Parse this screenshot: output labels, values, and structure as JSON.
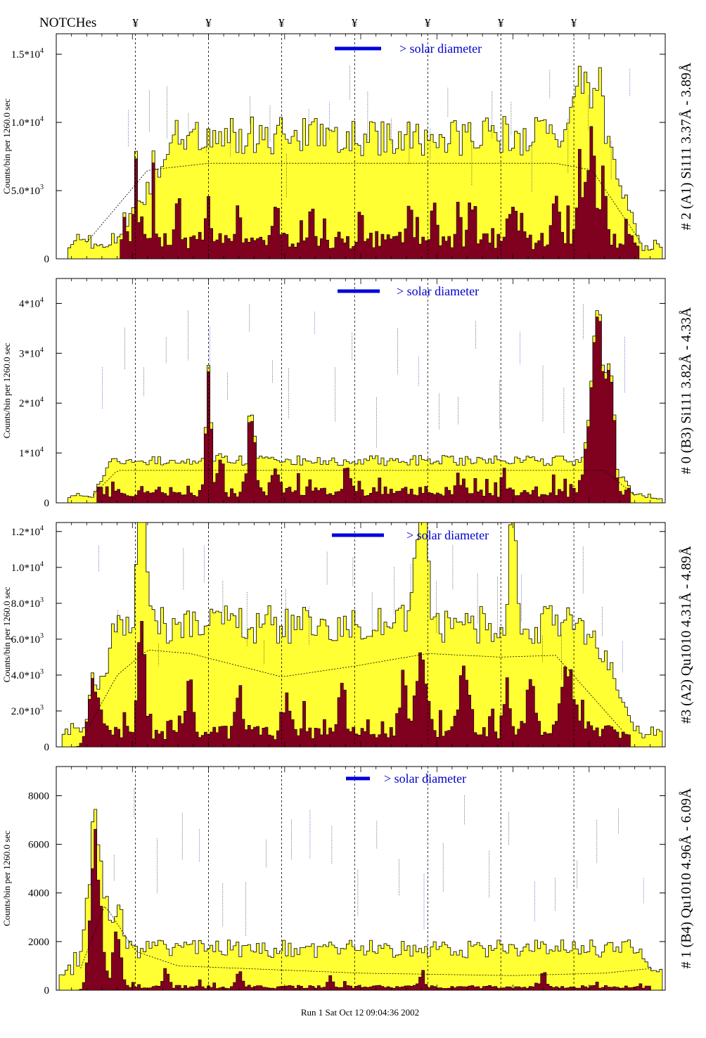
{
  "header": {
    "notches_label": "NOTCHes",
    "notch_symbol": "¥"
  },
  "footer": {
    "run_label": "Run 1 Sat Oct 12 09:04:36 2002"
  },
  "colors": {
    "total_fill": "#ffff33",
    "peak_fill": "#800020",
    "outline": "#000000",
    "scale_bar": "#0000dd",
    "scale_text": "#0000cc"
  },
  "chart_data": [
    {
      "type": "area",
      "id": "A1",
      "ylabel": "Counts/bin per   1260.0 sec",
      "side_label": "# 2 (A1) Si111  3.37Å - 3.89Å",
      "scale_label": "> solar diameter",
      "ylim": [
        0,
        16500
      ],
      "yticks": [
        0,
        5000,
        10000,
        15000
      ],
      "tick_labels": [
        "0",
        "5.0*10",
        "1.0*10",
        "1.5*10"
      ],
      "tick_exponents": [
        "",
        "3",
        "4",
        "4"
      ],
      "notches": [
        0.13,
        0.25,
        0.37,
        0.49,
        0.61,
        0.73,
        0.85
      ],
      "bins": 210,
      "outer": [
        0.02,
        0.1
      ],
      "rise": [
        0.1,
        0.2
      ],
      "fall": [
        0.9,
        0.96
      ],
      "plateau": 9000,
      "edge_level": 1200,
      "noise": 0.16,
      "peak_base": 1500,
      "peaks": [
        [
          0.13,
          4000,
          0.004
        ],
        [
          0.16,
          3500,
          0.003
        ],
        [
          0.2,
          3000,
          0.004
        ],
        [
          0.25,
          4200,
          0.003
        ],
        [
          0.3,
          2500,
          0.004
        ],
        [
          0.36,
          2800,
          0.004
        ],
        [
          0.42,
          2400,
          0.004
        ],
        [
          0.5,
          2000,
          0.004
        ],
        [
          0.58,
          2500,
          0.004
        ],
        [
          0.62,
          2800,
          0.004
        ],
        [
          0.68,
          2200,
          0.004
        ],
        [
          0.75,
          2000,
          0.006
        ],
        [
          0.82,
          3500,
          0.005
        ],
        [
          0.86,
          6000,
          0.004
        ],
        [
          0.88,
          7500,
          0.006
        ],
        [
          0.9,
          3000,
          0.005
        ]
      ],
      "dashed": [
        [
          0.05,
          1200
        ],
        [
          0.15,
          6500
        ],
        [
          0.25,
          7000
        ],
        [
          0.5,
          7000
        ],
        [
          0.75,
          7000
        ],
        [
          0.82,
          7000
        ],
        [
          0.88,
          6500
        ],
        [
          0.96,
          1200
        ]
      ],
      "side_bumps": [
        [
          0.86,
          5500,
          0.01
        ],
        [
          0.89,
          4000,
          0.008
        ]
      ]
    },
    {
      "type": "area",
      "id": "B3",
      "ylabel": "Counts/bin per   1260.0 sec",
      "side_label": "# 0 (B3) Si111  3.82Å - 4.33Å",
      "scale_label": "> solar diameter",
      "ylim": [
        0,
        45000
      ],
      "yticks": [
        0,
        10000,
        20000,
        30000,
        40000
      ],
      "tick_labels": [
        "0",
        "1*10",
        "2*10",
        "3*10",
        "4*10"
      ],
      "tick_exponents": [
        "",
        "4",
        "4",
        "4",
        "4"
      ],
      "notches": [
        0.13,
        0.25,
        0.37,
        0.49,
        0.61,
        0.73,
        0.85
      ],
      "bins": 210,
      "outer": [
        0.02,
        0.06
      ],
      "rise": [
        0.06,
        0.09
      ],
      "fall": [
        0.91,
        0.95
      ],
      "plateau": 8500,
      "edge_level": 1500,
      "noise": 0.12,
      "peak_base": 2500,
      "peaks": [
        [
          0.25,
          28000,
          0.004
        ],
        [
          0.27,
          7000,
          0.004
        ],
        [
          0.32,
          18000,
          0.005
        ],
        [
          0.36,
          5000,
          0.005
        ],
        [
          0.48,
          5000,
          0.005
        ],
        [
          0.66,
          5000,
          0.003
        ],
        [
          0.89,
          33000,
          0.012
        ],
        [
          0.91,
          18000,
          0.006
        ]
      ],
      "dashed": [
        [
          0.06,
          1500
        ],
        [
          0.1,
          6500
        ],
        [
          0.5,
          6500
        ],
        [
          0.9,
          6500
        ],
        [
          0.95,
          1500
        ]
      ],
      "side_bumps": []
    },
    {
      "type": "area",
      "id": "A2",
      "ylabel": "Counts/bin per   1260.0 sec",
      "side_label": "#3 (A2) Qu1010  4.31Å - 4.89Å",
      "scale_label": "> solar diameter",
      "ylim": [
        0,
        12500
      ],
      "yticks": [
        0,
        2000,
        4000,
        6000,
        8000,
        10000,
        12000
      ],
      "tick_labels": [
        "0",
        "2.0*10",
        "4.0*10",
        "6.0*10",
        "8.0*10",
        "1.0*10",
        "1.2*10"
      ],
      "tick_exponents": [
        "",
        "3",
        "3",
        "3",
        "3",
        "4",
        "4"
      ],
      "notches": [
        0.13,
        0.25,
        0.37,
        0.49,
        0.61,
        0.73,
        0.85
      ],
      "bins": 210,
      "outer": [
        0.01,
        0.05
      ],
      "rise": [
        0.05,
        0.1
      ],
      "fall": [
        0.88,
        0.95
      ],
      "plateau": 6800,
      "edge_level": 900,
      "noise": 0.16,
      "peak_base": 900,
      "peaks": [
        [
          0.06,
          3500,
          0.008
        ],
        [
          0.14,
          5500,
          0.006
        ],
        [
          0.22,
          3000,
          0.005
        ],
        [
          0.3,
          2500,
          0.005
        ],
        [
          0.38,
          2000,
          0.005
        ],
        [
          0.47,
          2500,
          0.005
        ],
        [
          0.57,
          3000,
          0.005
        ],
        [
          0.6,
          4800,
          0.008
        ],
        [
          0.67,
          3800,
          0.008
        ],
        [
          0.74,
          2500,
          0.005
        ],
        [
          0.78,
          3000,
          0.006
        ],
        [
          0.84,
          4000,
          0.01
        ]
      ],
      "dashed": [
        [
          0.05,
          900
        ],
        [
          0.1,
          4000
        ],
        [
          0.15,
          5400
        ],
        [
          0.22,
          5200
        ],
        [
          0.37,
          3900
        ],
        [
          0.49,
          4500
        ],
        [
          0.61,
          5200
        ],
        [
          0.73,
          5000
        ],
        [
          0.82,
          5100
        ],
        [
          0.93,
          900
        ]
      ],
      "side_bumps": [
        [
          0.14,
          9500,
          0.006
        ],
        [
          0.6,
          8000,
          0.008
        ],
        [
          0.75,
          8000,
          0.005
        ]
      ]
    },
    {
      "type": "area",
      "id": "B4",
      "ylabel": "Counts/bin per   1260.0 sec",
      "side_label": "# 1 (B4) Qu1010 4.96Å - 6.09Å",
      "scale_label": "> solar diameter",
      "ylim": [
        0,
        9200
      ],
      "yticks": [
        0,
        2000,
        4000,
        6000,
        8000
      ],
      "tick_labels": [
        "0",
        "2000",
        "4000",
        "6000",
        "8000"
      ],
      "tick_exponents": [
        "",
        "",
        "",
        "",
        ""
      ],
      "notches": [
        0.13,
        0.25,
        0.37,
        0.49,
        0.61,
        0.73,
        0.85
      ],
      "bins": 210,
      "outer": [
        0.005,
        0.04
      ],
      "rise": [
        0.04,
        0.06
      ],
      "fall": [
        0.95,
        0.98
      ],
      "plateau": 1700,
      "edge_level": 900,
      "noise": 0.22,
      "peak_base": 150,
      "peaks": [
        [
          0.065,
          5500,
          0.008
        ],
        [
          0.1,
          2500,
          0.006
        ],
        [
          0.18,
          800,
          0.004
        ],
        [
          0.3,
          700,
          0.004
        ],
        [
          0.45,
          500,
          0.004
        ],
        [
          0.6,
          600,
          0.004
        ],
        [
          0.8,
          700,
          0.004
        ]
      ],
      "dashed": [
        [
          0.04,
          900
        ],
        [
          0.08,
          3500
        ],
        [
          0.13,
          1600
        ],
        [
          0.2,
          1000
        ],
        [
          0.5,
          700
        ],
        [
          0.75,
          600
        ],
        [
          0.9,
          700
        ],
        [
          0.98,
          900
        ]
      ],
      "side_bumps": [
        [
          0.065,
          5000,
          0.012
        ],
        [
          0.1,
          1800,
          0.008
        ]
      ]
    }
  ]
}
